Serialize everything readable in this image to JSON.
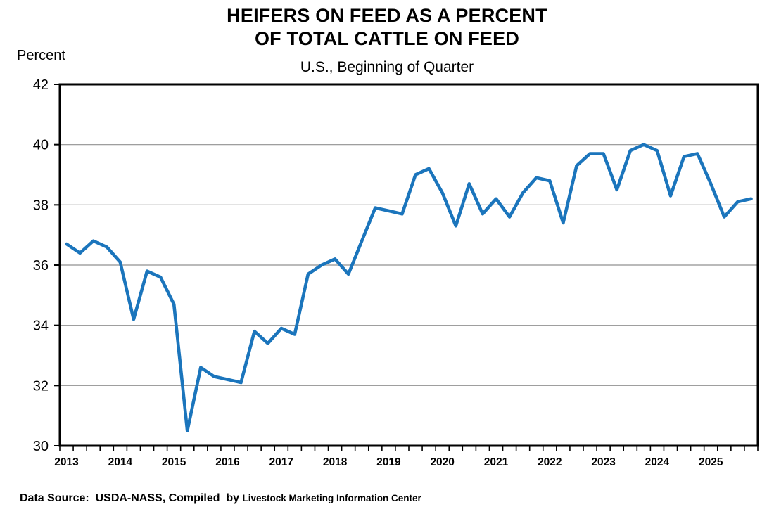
{
  "title": {
    "line1": "HEIFERS ON FEED AS A PERCENT",
    "line2": "OF TOTAL CATTLE ON FEED"
  },
  "subtitle": "U.S., Beginning of Quarter",
  "y_axis_title": "Percent",
  "footer": {
    "source_main": "Data Source:  USDA-NASS, Compiled  by ",
    "source_org": "Livestock Marketing Information Center"
  },
  "chart_data": {
    "type": "line",
    "title": "Heifers on Feed as a Percent of Total Cattle on Feed",
    "subtitle": "U.S., Beginning of Quarter",
    "ylabel": "Percent",
    "ylim": [
      30,
      42
    ],
    "y_ticks": [
      30,
      32,
      34,
      36,
      38,
      40,
      42
    ],
    "grid": "horizontal",
    "legend_position": "none",
    "line_color": "#1B75BC",
    "grid_color": "#909090",
    "axis_color": "#000000",
    "x_tick_years": [
      "2013",
      "2014",
      "2015",
      "2016",
      "2017",
      "2018",
      "2019",
      "2020",
      "2021",
      "2022",
      "2023",
      "2024",
      "2025"
    ],
    "quarters_per_year": 4,
    "series": [
      {
        "name": "Heifers on feed, % of total cattle on feed",
        "x": [
          "2013Q1",
          "2013Q2",
          "2013Q3",
          "2013Q4",
          "2014Q1",
          "2014Q2",
          "2014Q3",
          "2014Q4",
          "2015Q1",
          "2015Q2",
          "2015Q3",
          "2015Q4",
          "2016Q1",
          "2016Q2",
          "2016Q3",
          "2016Q4",
          "2017Q1",
          "2017Q2",
          "2017Q3",
          "2017Q4",
          "2018Q1",
          "2018Q2",
          "2018Q3",
          "2018Q4",
          "2019Q1",
          "2019Q2",
          "2019Q3",
          "2019Q4",
          "2020Q1",
          "2020Q2",
          "2020Q3",
          "2020Q4",
          "2021Q1",
          "2021Q2",
          "2021Q3",
          "2021Q4",
          "2022Q1",
          "2022Q2",
          "2022Q3",
          "2022Q4",
          "2023Q1",
          "2023Q2",
          "2023Q3",
          "2023Q4",
          "2024Q1",
          "2024Q2",
          "2024Q3",
          "2024Q4",
          "2025Q1",
          "2025Q2",
          "2025Q3",
          "2025Q4"
        ],
        "values": [
          36.7,
          36.4,
          36.8,
          36.6,
          36.1,
          34.2,
          35.8,
          35.6,
          34.7,
          30.5,
          32.6,
          32.3,
          32.2,
          32.1,
          33.8,
          33.4,
          33.9,
          33.7,
          35.7,
          36.0,
          36.2,
          35.7,
          36.8,
          37.9,
          37.8,
          37.7,
          39.0,
          39.2,
          38.4,
          37.3,
          38.7,
          37.7,
          38.2,
          37.6,
          38.4,
          38.9,
          38.8,
          37.4,
          39.3,
          39.7,
          39.7,
          38.5,
          39.8,
          40.0,
          39.8,
          38.3,
          39.6,
          39.7,
          38.7,
          37.6,
          38.1,
          38.2
        ]
      }
    ]
  }
}
